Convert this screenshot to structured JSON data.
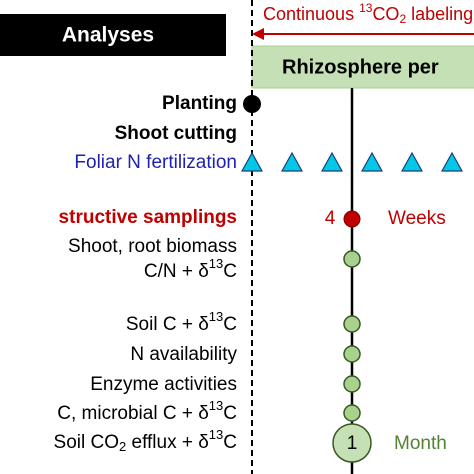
{
  "header": {
    "box": "Analyses",
    "labeling": [
      "Continuous ",
      "13",
      "CO",
      "2",
      " labeling"
    ],
    "period": "Rhizosphere per"
  },
  "rows": {
    "planting": "Planting",
    "shoot_cutting": "Shoot cutting",
    "fertilization": "Foliar N fertilization",
    "samplings": "structive samplings",
    "biomass": "Shoot, root biomass",
    "cn": [
      "C/N + δ",
      "13",
      "C"
    ],
    "soil_c": [
      "Soil C + δ",
      "13",
      "C"
    ],
    "n_avail": "N availability",
    "enzyme": "Enzyme activities",
    "microbial": [
      "C, microbial C + δ",
      "13",
      "C"
    ],
    "efflux": [
      "Soil CO",
      "2",
      " efflux + δ",
      "13",
      "C"
    ]
  },
  "timeline": {
    "weeks_number": "4",
    "weeks": "Weeks",
    "month_number": "1",
    "month": "Month"
  }
}
